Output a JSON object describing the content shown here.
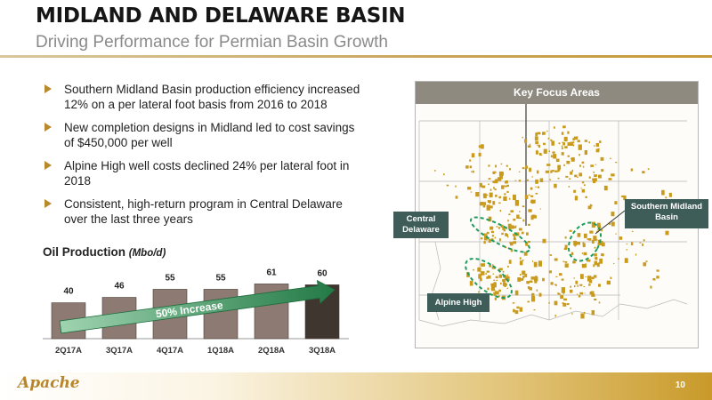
{
  "header": {
    "title": "MIDLAND AND DELAWARE BASIN",
    "subtitle": "Driving Performance for Permian Basin Growth"
  },
  "bullets": [
    "Southern Midland Basin production efficiency increased 12% on a per lateral foot basis from 2016 to 2018",
    "New completion designs in Midland led to cost savings of $450,000 per well",
    "Alpine High well costs declined 24% per lateral foot in 2018",
    "Consistent, high-return program in Central Delaware over the last three years"
  ],
  "chart": {
    "title": "Oil Production",
    "unit": "(Mbo/d)",
    "arrow_label": "50% Increase"
  },
  "chart_data": {
    "type": "bar",
    "title": "Oil Production (Mbo/d)",
    "categories": [
      "2Q17A",
      "3Q17A",
      "4Q17A",
      "1Q18A",
      "2Q18A",
      "3Q18A"
    ],
    "values": [
      40,
      46,
      55,
      55,
      61,
      60
    ],
    "ylim": [
      0,
      70
    ],
    "grid": false,
    "colors": {
      "bar_fill": "#8d7a72",
      "bar_last_fill": "#3f362f",
      "bar_stroke": "#4a3f38",
      "arrow_fill": "#2f8f55"
    }
  },
  "map": {
    "header": "Key Focus Areas",
    "labels": {
      "central_delaware": "Central Delaware",
      "southern_midland": "Southern Midland Basin",
      "alpine_high": "Alpine High"
    },
    "colors": {
      "acreage": "#c99a1c",
      "label_box": "#3e5d59",
      "focus_ellipse": "#1f9c5c"
    }
  },
  "footer": {
    "logo": "Apache",
    "page_number": "10"
  }
}
